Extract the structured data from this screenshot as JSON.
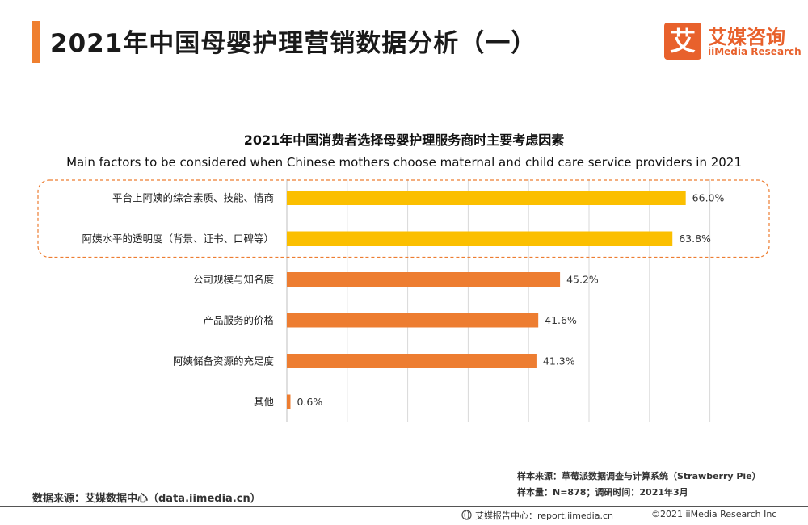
{
  "header": {
    "title": "2021年中国母婴护理营销数据分析（一）",
    "logo_cn": "艾媒咨询",
    "logo_en": "iiMedia Research",
    "logo_glyph": "艾"
  },
  "chart_data": {
    "type": "bar",
    "orientation": "horizontal",
    "title": "2021年中国消费者选择母婴护理服务商时主要考虑因素",
    "subtitle": "Main factors to be considered when Chinese mothers choose maternal and child care service providers in 2021",
    "categories": [
      "平台上阿姨的综合素质、技能、情商",
      "阿姨水平的透明度（背景、证书、口碑等）",
      "公司规模与知名度",
      "产品服务的价格",
      "阿姨储备资源的充足度",
      "其他"
    ],
    "values": [
      66.0,
      63.8,
      45.2,
      41.6,
      41.3,
      0.6
    ],
    "value_labels": [
      "66.0%",
      "63.8%",
      "45.2%",
      "41.6%",
      "41.3%",
      "0.6%"
    ],
    "highlighted": [
      true,
      true,
      false,
      false,
      false,
      false
    ],
    "xlim": [
      0,
      70
    ],
    "grid": true,
    "colors": {
      "highlight": "#fbbf00",
      "normal": "#ed7d31",
      "highlight_box": "#ed7d31",
      "grid": "#d9d9d9"
    }
  },
  "notes": {
    "sample_source": "样本来源：草莓派数据调查与计算系统（Strawberry Pie）",
    "sample_size": "样本量：N=878；调研时间：2021年3月"
  },
  "source": "数据来源：艾媒数据中心（data.iimedia.cn）",
  "footer": {
    "report_center": "艾媒报告中心：report.iimedia.cn",
    "copyright": "©2021  iiMedia Research  Inc"
  }
}
